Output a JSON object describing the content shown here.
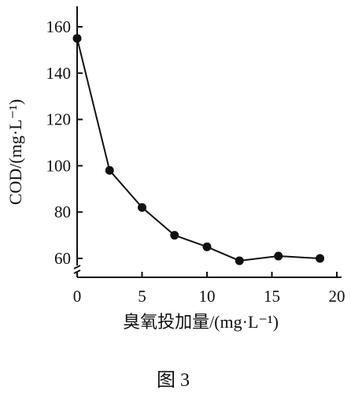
{
  "chart_data": {
    "type": "line",
    "title": "",
    "xlabel": "臭氧投加量/(mg·L⁻¹)",
    "ylabel": "COD/(mg·L⁻¹)",
    "x_ticks": [
      "0",
      "5",
      "10",
      "15",
      "20"
    ],
    "y_ticks": [
      "60",
      "80",
      "100",
      "120",
      "140",
      "160"
    ],
    "xlim": [
      0,
      20
    ],
    "ylim": [
      60,
      170
    ],
    "y_axis_break": true,
    "grid": false,
    "series": [
      {
        "x": [
          0,
          2.5,
          5,
          7.5,
          10,
          12.5,
          15.5,
          18.7
        ],
        "y": [
          155,
          98,
          82,
          70,
          65,
          59,
          61,
          60
        ]
      }
    ],
    "caption": "图 3"
  }
}
